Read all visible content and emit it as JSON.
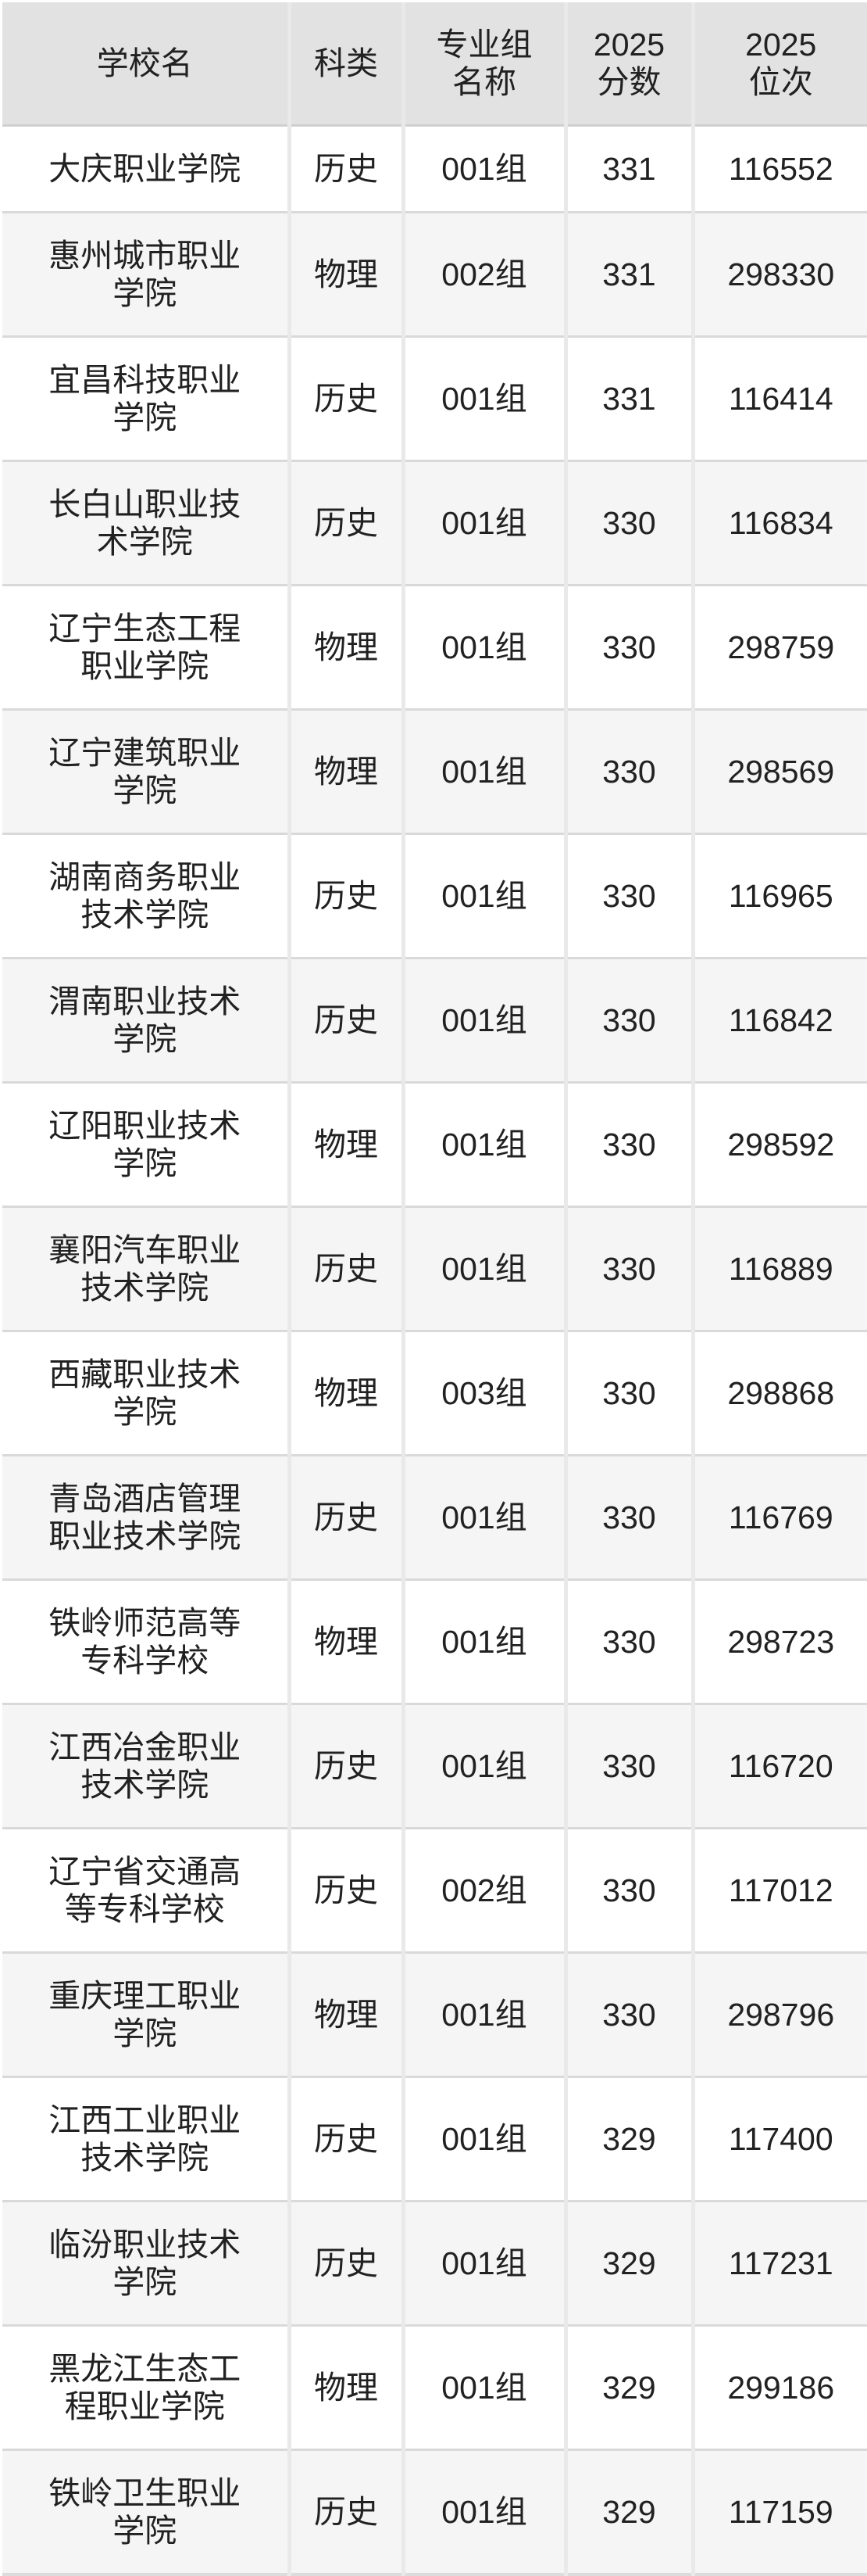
{
  "table": {
    "columns": [
      {
        "key": "school",
        "label": "学校名"
      },
      {
        "key": "category",
        "label": "科类"
      },
      {
        "key": "group",
        "label": "专业组\n名称"
      },
      {
        "key": "score",
        "label": "2025\n分数"
      },
      {
        "key": "rank",
        "label": "2025\n位次"
      }
    ],
    "rows": [
      {
        "school": "大庆职业学院",
        "category": "历史",
        "group": "001组",
        "score": "331",
        "rank": "116552"
      },
      {
        "school": "惠州城市职业\n学院",
        "category": "物理",
        "group": "002组",
        "score": "331",
        "rank": "298330"
      },
      {
        "school": "宜昌科技职业\n学院",
        "category": "历史",
        "group": "001组",
        "score": "331",
        "rank": "116414"
      },
      {
        "school": "长白山职业技\n术学院",
        "category": "历史",
        "group": "001组",
        "score": "330",
        "rank": "116834"
      },
      {
        "school": "辽宁生态工程\n职业学院",
        "category": "物理",
        "group": "001组",
        "score": "330",
        "rank": "298759"
      },
      {
        "school": "辽宁建筑职业\n学院",
        "category": "物理",
        "group": "001组",
        "score": "330",
        "rank": "298569"
      },
      {
        "school": "湖南商务职业\n技术学院",
        "category": "历史",
        "group": "001组",
        "score": "330",
        "rank": "116965"
      },
      {
        "school": "渭南职业技术\n学院",
        "category": "历史",
        "group": "001组",
        "score": "330",
        "rank": "116842"
      },
      {
        "school": "辽阳职业技术\n学院",
        "category": "物理",
        "group": "001组",
        "score": "330",
        "rank": "298592"
      },
      {
        "school": "襄阳汽车职业\n技术学院",
        "category": "历史",
        "group": "001组",
        "score": "330",
        "rank": "116889"
      },
      {
        "school": "西藏职业技术\n学院",
        "category": "物理",
        "group": "003组",
        "score": "330",
        "rank": "298868"
      },
      {
        "school": "青岛酒店管理\n职业技术学院",
        "category": "历史",
        "group": "001组",
        "score": "330",
        "rank": "116769"
      },
      {
        "school": "铁岭师范高等\n专科学校",
        "category": "物理",
        "group": "001组",
        "score": "330",
        "rank": "298723"
      },
      {
        "school": "江西冶金职业\n技术学院",
        "category": "历史",
        "group": "001组",
        "score": "330",
        "rank": "116720"
      },
      {
        "school": "辽宁省交通高\n等专科学校",
        "category": "历史",
        "group": "002组",
        "score": "330",
        "rank": "117012"
      },
      {
        "school": "重庆理工职业\n学院",
        "category": "物理",
        "group": "001组",
        "score": "330",
        "rank": "298796"
      },
      {
        "school": "江西工业职业\n技术学院",
        "category": "历史",
        "group": "001组",
        "score": "329",
        "rank": "117400"
      },
      {
        "school": "临汾职业技术\n学院",
        "category": "历史",
        "group": "001组",
        "score": "329",
        "rank": "117231"
      },
      {
        "school": "黑龙江生态工\n程职业学院",
        "category": "物理",
        "group": "001组",
        "score": "329",
        "rank": "299186"
      },
      {
        "school": "铁岭卫生职业\n学院",
        "category": "历史",
        "group": "001组",
        "score": "329",
        "rank": "117159"
      }
    ]
  },
  "colors": {
    "header_bg": "#e2e2e2",
    "row_even_bg": "#f5f5f5",
    "row_odd_bg": "#ffffff",
    "vertical_border": "#e9e9e9",
    "horizontal_border": "#d9d9d9",
    "text": "#212121"
  }
}
